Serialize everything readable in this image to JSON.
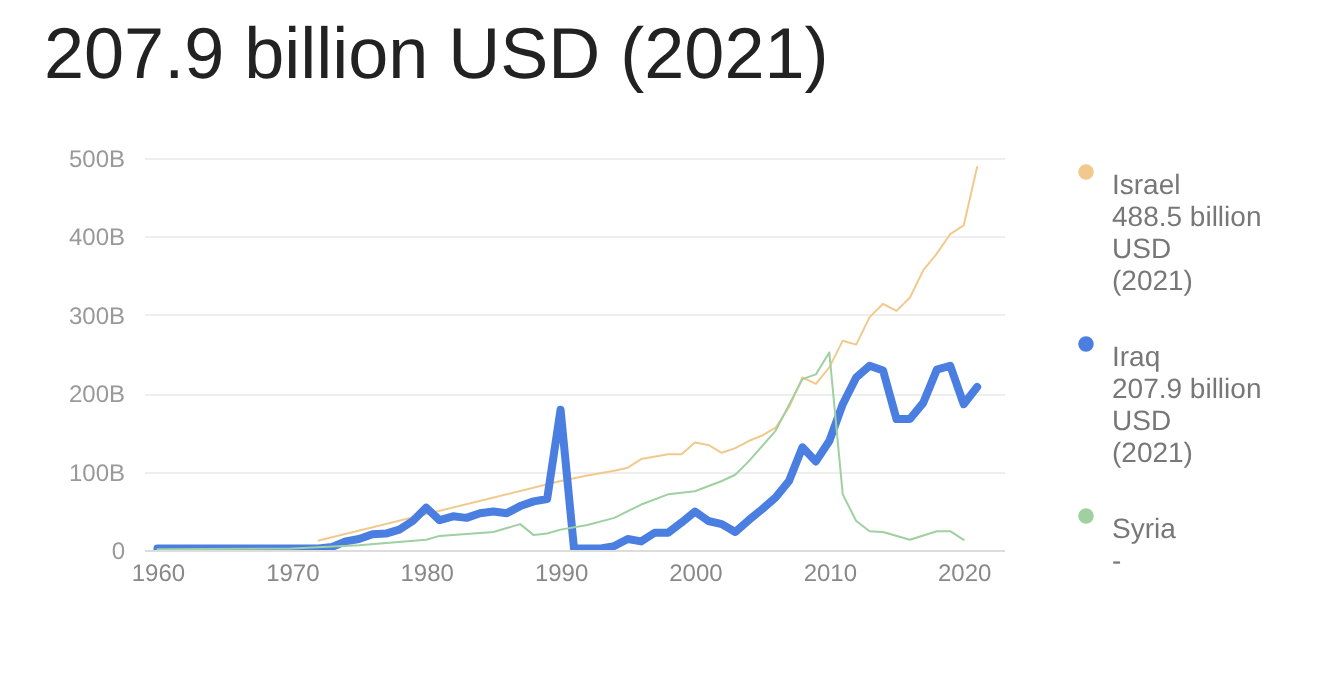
{
  "chart_data": {
    "type": "line",
    "title": "207.9 billion USD (2021)",
    "xlim": [
      1959,
      2023
    ],
    "xticks": [
      1960,
      1970,
      1980,
      1990,
      2000,
      2010,
      2020
    ],
    "ylim": [
      0,
      500
    ],
    "yticks": [
      {
        "value": 0,
        "label": "0"
      },
      {
        "value": 100,
        "label": "100B"
      },
      {
        "value": 200,
        "label": "200B"
      },
      {
        "value": 300,
        "label": "300B"
      },
      {
        "value": 400,
        "label": "400B"
      },
      {
        "value": 500,
        "label": "500B"
      }
    ],
    "grid": "y",
    "legend": "right",
    "marker": "none",
    "line_style": "solid",
    "annotations": [
      "488.5 billion USD (2021)",
      "207.9 billion USD (2021)",
      "-"
    ],
    "series": [
      {
        "name": "Israel",
        "color": "#f2c98d",
        "x": [
          1972,
          1990,
          1992,
          1994,
          1995,
          1996,
          1998,
          1999,
          2000,
          2001,
          2002,
          2003,
          2004,
          2005,
          2006,
          2007,
          2008,
          2009,
          2010,
          2011,
          2012,
          2013,
          2014,
          2015,
          2016,
          2017,
          2018,
          2019,
          2020,
          2021
        ],
        "values": [
          12,
          88,
          95,
          101,
          105,
          116,
          122,
          122,
          137,
          134,
          124,
          130,
          139,
          146,
          156,
          182,
          220,
          212,
          233,
          267,
          262,
          297,
          314,
          305,
          322,
          357,
          378,
          403,
          414,
          488.5
        ]
      },
      {
        "name": "Iraq",
        "color": "#4a7ee0",
        "x": [
          1960,
          1972,
          1973,
          1974,
          1975,
          1976,
          1977,
          1978,
          1979,
          1980,
          1981,
          1982,
          1983,
          1984,
          1985,
          1986,
          1987,
          1988,
          1989,
          1990,
          1991,
          1992,
          1993,
          1994,
          1995,
          1996,
          1997,
          1998,
          1999,
          2000,
          2001,
          2002,
          2003,
          2004,
          2005,
          2006,
          2007,
          2008,
          2009,
          2010,
          2011,
          2012,
          2013,
          2014,
          2015,
          2016,
          2017,
          2018,
          2019,
          2020,
          2021
        ],
        "values": [
          2,
          2,
          4,
          11,
          14,
          20,
          21,
          26,
          37,
          54,
          38,
          43,
          41,
          47,
          49,
          47,
          56,
          62,
          65,
          179,
          2,
          2,
          2,
          5,
          14,
          11,
          22,
          22,
          35,
          49,
          37,
          33,
          23,
          38,
          52,
          67,
          88,
          131,
          113,
          139,
          186,
          220,
          235,
          229,
          167,
          167,
          188,
          230,
          235,
          186,
          207.9
        ]
      },
      {
        "name": "Syria",
        "color": "#9fd0a0",
        "x": [
          1960,
          1970,
          1975,
          1980,
          1981,
          1985,
          1986,
          1987,
          1988,
          1989,
          1990,
          1992,
          1994,
          1996,
          1998,
          2000,
          2002,
          2003,
          2004,
          2006,
          2008,
          2009,
          2010,
          2011,
          2012,
          2013,
          2014,
          2016,
          2018,
          2019,
          2020
        ],
        "values": [
          1,
          2,
          6,
          13,
          18,
          23,
          28,
          33,
          19,
          21,
          26,
          32,
          41,
          58,
          71,
          75,
          88,
          96,
          113,
          152,
          218,
          224,
          252,
          71,
          37,
          24,
          23,
          13,
          24,
          24,
          13
        ]
      }
    ]
  }
}
